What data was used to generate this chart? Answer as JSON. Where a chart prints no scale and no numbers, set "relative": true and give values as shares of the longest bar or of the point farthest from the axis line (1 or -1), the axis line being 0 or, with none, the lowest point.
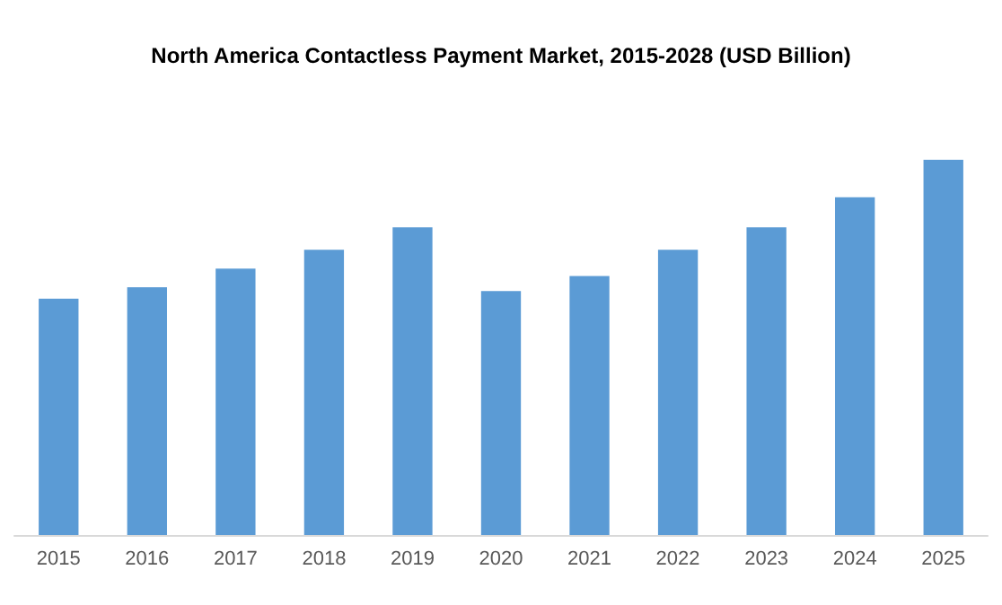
{
  "chart_data": {
    "type": "bar",
    "title": "North America Contactless Payment Market, 2015-2028 (USD Billion)",
    "categories": [
      "2015",
      "2016",
      "2017",
      "2018",
      "2019",
      "2020",
      "2021",
      "2022",
      "2023",
      "2024",
      "2025"
    ],
    "values": [
      0.63,
      0.66,
      0.71,
      0.76,
      0.82,
      0.65,
      0.69,
      0.76,
      0.82,
      0.9,
      1
    ],
    "color": "#5b9bd5",
    "relative": true
  }
}
